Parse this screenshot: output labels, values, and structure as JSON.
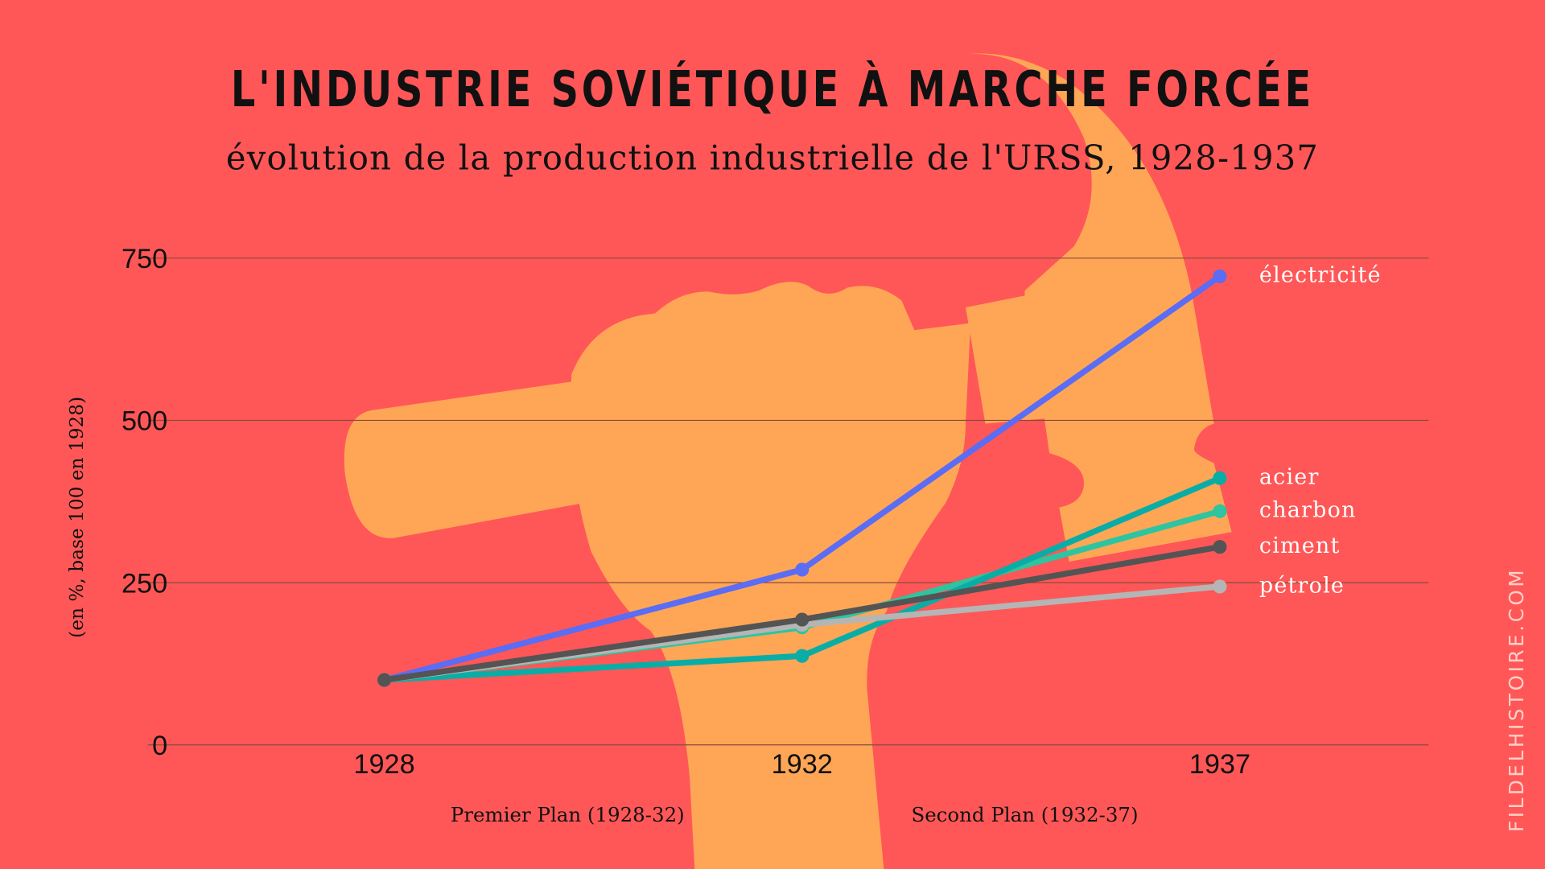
{
  "colors": {
    "background": "#FF5757",
    "hammer": "#FFA656"
  },
  "watermark": "FILDELHISTOIRE.COM",
  "chart_data": {
    "type": "line",
    "title": "L'INDUSTRIE SOVIÉTIQUE À MARCHE FORCÉE",
    "subtitle": "évolution de la production industrielle de l'URSS, 1928-1937",
    "ylabel": "(en %, base 100 en 1928)",
    "xlabel": "",
    "categories": [
      "1928",
      "1932",
      "1937"
    ],
    "yticks": [
      "0",
      "250",
      "500",
      "750"
    ],
    "ylim": [
      0,
      750
    ],
    "grid": true,
    "legend": "right, labels at line ends",
    "periods": [
      "Premier Plan (1928-32)",
      "Second Plan (1932-37)"
    ],
    "series": [
      {
        "name": "électricité",
        "color": "#5B6CF5",
        "values": [
          100,
          270,
          722
        ]
      },
      {
        "name": "acier",
        "color": "#0AADA6",
        "values": [
          100,
          137,
          411
        ]
      },
      {
        "name": "charbon",
        "color": "#2EC4A0",
        "values": [
          100,
          181,
          360
        ]
      },
      {
        "name": "ciment",
        "color": "#545454",
        "values": [
          100,
          193,
          305
        ]
      },
      {
        "name": "pétrole",
        "color": "#B5B5B5",
        "values": [
          100,
          185,
          244
        ]
      }
    ]
  }
}
